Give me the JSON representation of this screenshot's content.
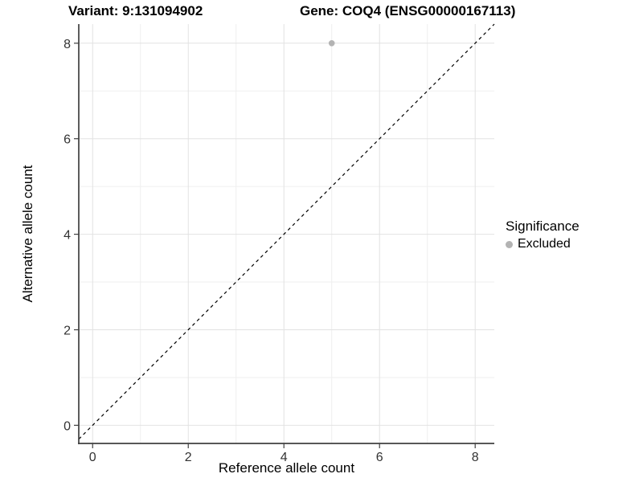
{
  "chart_data": {
    "type": "scatter",
    "titles": {
      "left": "Variant: 9:131094902",
      "right": "Gene: COQ4 (ENSG00000167113)"
    },
    "xlabel": "Reference allele count",
    "ylabel": "Alternative allele count",
    "xlim": [
      -0.29,
      8.4
    ],
    "ylim": [
      -0.38,
      8.4
    ],
    "xticks": [
      0,
      2,
      4,
      6,
      8
    ],
    "yticks": [
      0,
      2,
      4,
      6,
      8
    ],
    "xticks_minor": [
      1,
      3,
      5,
      7
    ],
    "yticks_minor": [
      1,
      3,
      5,
      7
    ],
    "grid": "major+minor",
    "series": [
      {
        "name": "Excluded",
        "color": "#b3b3b3",
        "points": [
          {
            "x": 5,
            "y": 8
          }
        ]
      }
    ],
    "reference_line": {
      "slope": 1,
      "intercept": 0,
      "style": "dashed",
      "color": "#000000"
    },
    "legend": {
      "title": "Significance",
      "position": "right",
      "items": [
        {
          "label": "Excluded",
          "color": "#b3b3b3",
          "marker": "circle"
        }
      ]
    }
  },
  "colors": {
    "background": "#ffffff",
    "grid_major": "#e2e2e2",
    "grid_minor": "#efefef",
    "axis_line": "#404040",
    "tick_label": "#333333",
    "point": "#b3b3b3"
  }
}
